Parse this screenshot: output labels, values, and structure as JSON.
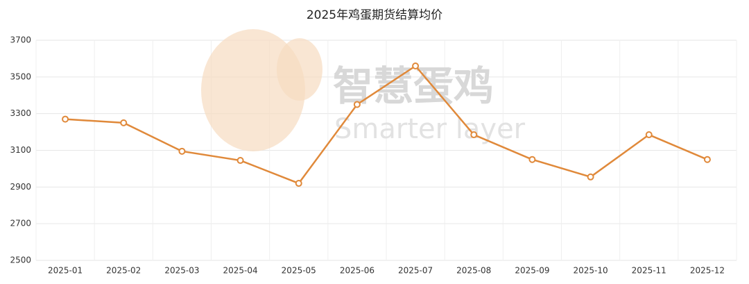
{
  "chart_data": {
    "type": "line",
    "title": "2025年鸡蛋期货结算均价",
    "categories": [
      "2025-01",
      "2025-02",
      "2025-03",
      "2025-04",
      "2025-05",
      "2025-06",
      "2025-07",
      "2025-08",
      "2025-09",
      "2025-10",
      "2025-11",
      "2025-12"
    ],
    "series": [
      {
        "name": "结算均价",
        "color": "#e0893a",
        "values": [
          3270,
          3250,
          3095,
          3045,
          2920,
          3350,
          3560,
          3185,
          3050,
          2955,
          3185,
          3050
        ]
      }
    ],
    "ylim": [
      2500,
      3700
    ],
    "yticks": [
      2500,
      2700,
      2900,
      3100,
      3300,
      3500,
      3700
    ],
    "grid": true,
    "watermark": {
      "title": "智慧蛋鸡",
      "subtitle": "Smarter layer"
    }
  }
}
